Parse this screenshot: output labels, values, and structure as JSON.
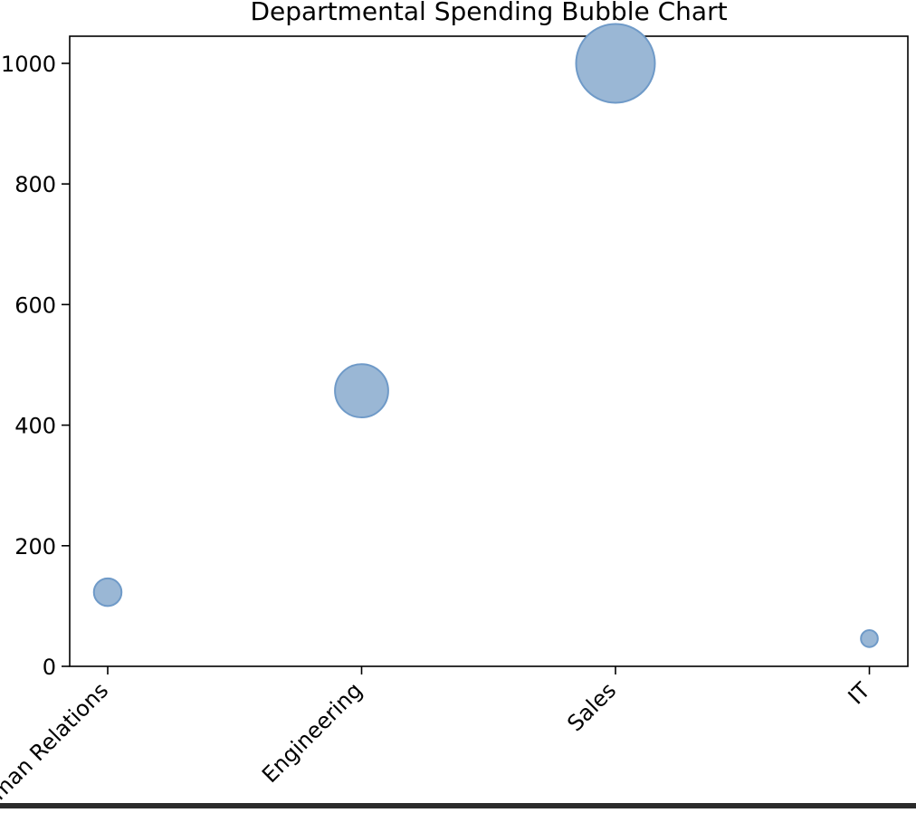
{
  "chart_data": {
    "type": "scatter",
    "title": "Departmental Spending Bubble Chart",
    "xlabel": "",
    "ylabel": "",
    "categories": [
      "Human Relations",
      "Engineering",
      "Sales",
      "IT"
    ],
    "series": [
      {
        "values": [
          123,
          457,
          1000,
          46
        ],
        "sizes": [
          123,
          457,
          1000,
          46
        ]
      }
    ],
    "ylim": [
      0,
      1045
    ],
    "yticks": [
      0,
      200,
      400,
      600,
      800,
      1000
    ],
    "grid": false,
    "colors": {
      "bubble_fill": "#9ab7d5",
      "bubble_edge": "#6f9ac8",
      "axis": "#000000"
    }
  }
}
